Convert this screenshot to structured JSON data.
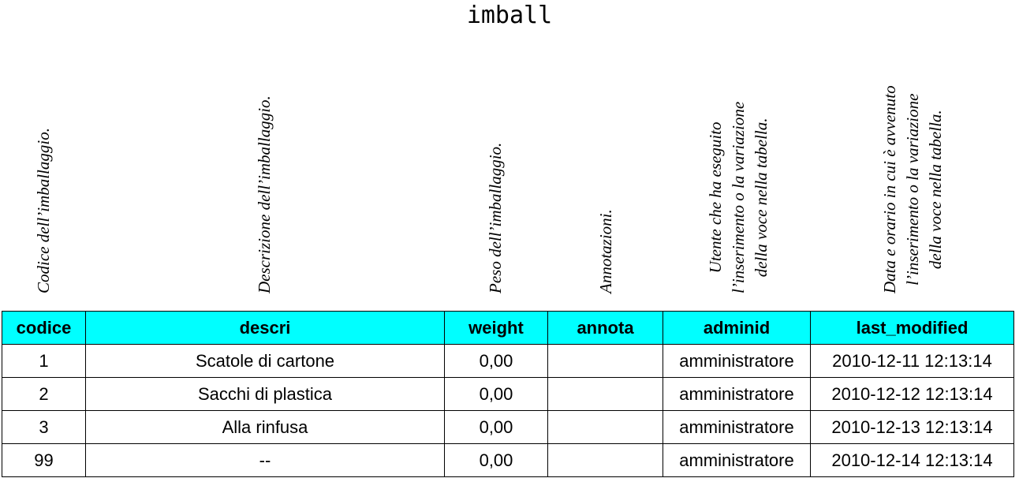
{
  "title": "imball",
  "column_descriptions": [
    [
      "Codice dell’imballaggio."
    ],
    [
      "Descrizione dell’imballaggio."
    ],
    [
      "Peso dell’imballaggio."
    ],
    [
      "Annotazioni."
    ],
    [
      "Utente che ha eseguito",
      "l’inserimento o la variazione",
      "della voce nella tabella."
    ],
    [
      "Data e orario in cui è avvenuto",
      "l’inserimento o la variazione",
      "della voce nella tabella."
    ]
  ],
  "table": {
    "headers": [
      "codice",
      "descri",
      "weight",
      "annota",
      "adminid",
      "last_modified"
    ],
    "rows": [
      [
        "1",
        "Scatole di cartone",
        "0,00",
        "",
        "amministratore",
        "2010-12-11 12:13:14"
      ],
      [
        "2",
        "Sacchi di plastica",
        "0,00",
        "",
        "amministratore",
        "2010-12-12 12:13:14"
      ],
      [
        "3",
        "Alla rinfusa",
        "0,00",
        "",
        "amministratore",
        "2010-12-13 12:13:14"
      ],
      [
        "99",
        "--",
        "0,00",
        "",
        "amministratore",
        "2010-12-14 12:13:14"
      ]
    ]
  },
  "colors": {
    "header_bg": "#00ffff"
  }
}
